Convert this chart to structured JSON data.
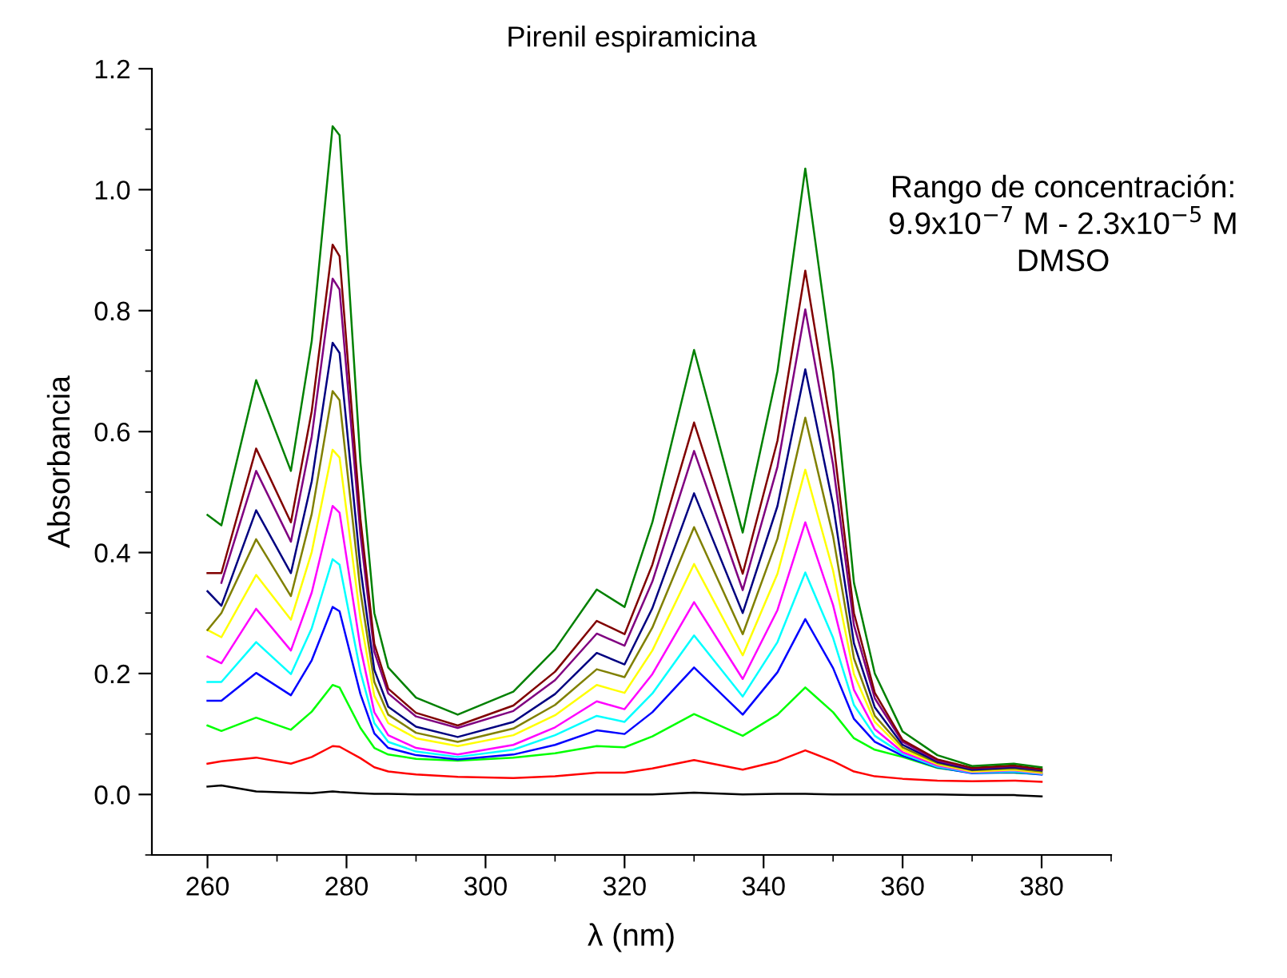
{
  "chart_data": {
    "type": "line",
    "title": "Pirenil espiramicina",
    "xlabel": "λ (nm)",
    "ylabel": "Absorbancia",
    "annotations": [
      "Rango de concentración:\n9.9x10$^{−7}$ M - 2.3x10$^{−5}$ M\nDMSO"
    ],
    "x": [
      260,
      262,
      267,
      272,
      275,
      278,
      279,
      282,
      284,
      286,
      290,
      296,
      304,
      310,
      316,
      320,
      324,
      330,
      337,
      342,
      346,
      350,
      353,
      356,
      360,
      365,
      370,
      376,
      380
    ],
    "xlim": [
      252,
      390
    ],
    "xticks": [
      260,
      280,
      300,
      320,
      340,
      360,
      380
    ],
    "ylim": [
      -0.1,
      1.2
    ],
    "yticks": [
      {
        "value": 0,
        "label": "0.0"
      },
      0.2,
      0.4,
      0.6,
      0.8,
      {
        "value": 1,
        "label": "1.0"
      },
      1.2
    ],
    "grid": false,
    "marker": "none",
    "line_style": "solid",
    "series": [
      {
        "color": "#000000",
        "values": [
          0.013,
          0.015,
          0.005,
          0.003,
          0.002,
          0.005,
          0.004,
          0.002,
          0.001,
          0.001,
          0.0,
          0.0,
          0.0,
          0.0,
          0.0,
          0.0,
          0.0,
          0.003,
          0.0,
          0.001,
          0.001,
          0.0,
          0.0,
          0.0,
          0.0,
          0.0,
          -0.001,
          -0.001,
          -0.003
        ]
      },
      {
        "color": "#ff0000",
        "values": [
          0.051,
          0.055,
          0.061,
          0.051,
          0.062,
          0.08,
          0.079,
          0.06,
          0.045,
          0.038,
          0.033,
          0.029,
          0.027,
          0.03,
          0.036,
          0.036,
          0.043,
          0.057,
          0.041,
          0.055,
          0.073,
          0.055,
          0.038,
          0.03,
          0.026,
          0.023,
          0.022,
          0.023,
          0.021
        ]
      },
      {
        "color": "#00ff00",
        "values": [
          0.114,
          0.105,
          0.127,
          0.107,
          0.137,
          0.181,
          0.177,
          0.11,
          0.077,
          0.066,
          0.059,
          0.056,
          0.061,
          0.068,
          0.08,
          0.078,
          0.096,
          0.133,
          0.097,
          0.132,
          0.177,
          0.136,
          0.093,
          0.074,
          0.062,
          0.044,
          0.036,
          0.036,
          0.034
        ]
      },
      {
        "color": "#0000ff",
        "values": [
          0.155,
          0.155,
          0.201,
          0.164,
          0.222,
          0.31,
          0.303,
          0.166,
          0.101,
          0.077,
          0.065,
          0.058,
          0.066,
          0.082,
          0.106,
          0.1,
          0.136,
          0.21,
          0.132,
          0.202,
          0.29,
          0.209,
          0.125,
          0.087,
          0.064,
          0.045,
          0.035,
          0.037,
          0.033
        ]
      },
      {
        "color": "#00ffff",
        "values": [
          0.186,
          0.186,
          0.252,
          0.199,
          0.275,
          0.389,
          0.38,
          0.203,
          0.118,
          0.087,
          0.071,
          0.062,
          0.074,
          0.098,
          0.13,
          0.12,
          0.167,
          0.263,
          0.162,
          0.252,
          0.367,
          0.259,
          0.148,
          0.097,
          0.067,
          0.046,
          0.036,
          0.038,
          0.034
        ]
      },
      {
        "color": "#ff00ff",
        "values": [
          0.228,
          0.217,
          0.307,
          0.238,
          0.334,
          0.477,
          0.466,
          0.243,
          0.136,
          0.098,
          0.077,
          0.066,
          0.082,
          0.111,
          0.154,
          0.141,
          0.199,
          0.318,
          0.191,
          0.305,
          0.45,
          0.313,
          0.173,
          0.108,
          0.07,
          0.048,
          0.037,
          0.04,
          0.035
        ]
      },
      {
        "color": "#ffff00",
        "values": [
          0.272,
          0.26,
          0.363,
          0.289,
          0.401,
          0.57,
          0.557,
          0.291,
          0.163,
          0.118,
          0.093,
          0.08,
          0.098,
          0.131,
          0.181,
          0.168,
          0.238,
          0.381,
          0.23,
          0.365,
          0.537,
          0.37,
          0.199,
          0.12,
          0.074,
          0.05,
          0.038,
          0.041,
          0.036
        ]
      },
      {
        "color": "#808000",
        "values": [
          0.272,
          0.3,
          0.422,
          0.328,
          0.464,
          0.667,
          0.652,
          0.336,
          0.186,
          0.132,
          0.102,
          0.087,
          0.109,
          0.148,
          0.207,
          0.194,
          0.276,
          0.442,
          0.265,
          0.423,
          0.623,
          0.427,
          0.225,
          0.13,
          0.078,
          0.052,
          0.04,
          0.043,
          0.038
        ]
      },
      {
        "color": "#000080",
        "values": [
          0.336,
          0.312,
          0.47,
          0.366,
          0.518,
          0.747,
          0.73,
          0.375,
          0.206,
          0.145,
          0.112,
          0.095,
          0.12,
          0.166,
          0.234,
          0.215,
          0.308,
          0.498,
          0.3,
          0.477,
          0.703,
          0.479,
          0.25,
          0.144,
          0.082,
          0.054,
          0.041,
          0.045,
          0.04
        ]
      },
      {
        "color": "#800080",
        "values": [
          null,
          0.35,
          0.535,
          0.418,
          0.592,
          0.853,
          0.835,
          0.43,
          0.236,
          0.167,
          0.129,
          0.11,
          0.138,
          0.189,
          0.266,
          0.246,
          0.352,
          0.568,
          0.338,
          0.542,
          0.802,
          0.545,
          0.28,
          0.159,
          0.087,
          0.056,
          0.043,
          0.047,
          0.041
        ]
      },
      {
        "color": "#800000",
        "values": [
          0.366,
          0.366,
          0.572,
          0.45,
          0.634,
          0.909,
          0.89,
          0.456,
          0.249,
          0.175,
          0.135,
          0.114,
          0.147,
          0.203,
          0.287,
          0.265,
          0.38,
          0.615,
          0.365,
          0.585,
          0.866,
          0.587,
          0.3,
          0.168,
          0.09,
          0.058,
          0.044,
          0.048,
          0.042
        ]
      },
      {
        "color": "#008000",
        "values": [
          0.462,
          0.445,
          0.685,
          0.535,
          0.75,
          1.105,
          1.09,
          0.55,
          0.3,
          0.21,
          0.16,
          0.132,
          0.17,
          0.24,
          0.339,
          0.31,
          0.45,
          0.735,
          0.433,
          0.7,
          1.035,
          0.7,
          0.35,
          0.2,
          0.104,
          0.065,
          0.047,
          0.051,
          0.045
        ]
      }
    ]
  }
}
